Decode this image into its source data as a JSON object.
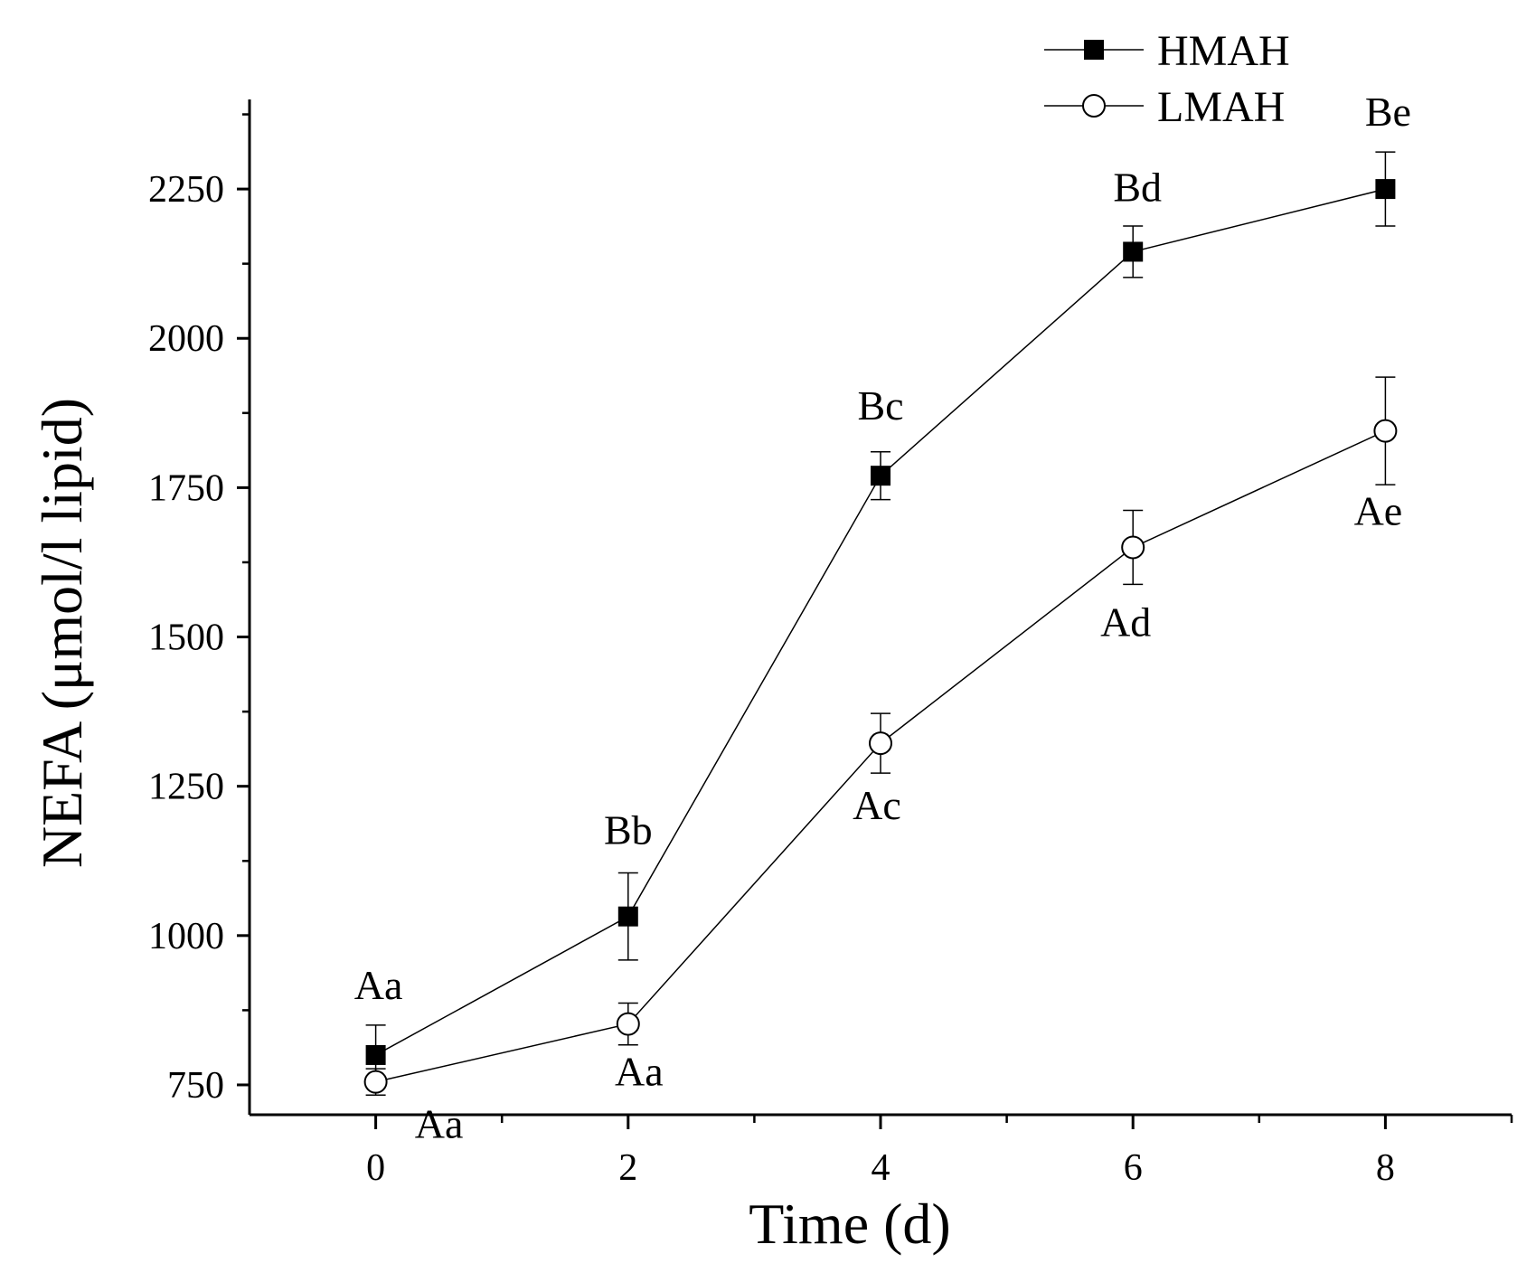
{
  "chart_data": {
    "type": "line",
    "xlabel": "Time (d)",
    "ylabel": "NEFA (μmol/l lipid)",
    "xlim": [
      -1,
      9
    ],
    "ylim": [
      700,
      2400
    ],
    "x_ticks": [
      0,
      2,
      4,
      6,
      8
    ],
    "x_tick_labels": [
      "0",
      "2",
      "4",
      "6",
      "8"
    ],
    "y_ticks": [
      750,
      1000,
      1250,
      1500,
      1750,
      2000,
      2250
    ],
    "y_tick_labels": [
      "750",
      "1000",
      "1250",
      "1500",
      "1750",
      "2000",
      "2250"
    ],
    "legend_position": "top-right",
    "grid": false,
    "series": [
      {
        "name": "HMAH",
        "marker": "filled-square",
        "x": [
          0,
          2,
          4,
          6,
          8
        ],
        "y": [
          800,
          1032,
          1770,
          2145,
          2250
        ],
        "error": [
          50,
          73,
          40,
          43,
          62
        ],
        "labels": [
          "Aa",
          "Bb",
          "Bc",
          "Bd",
          "Be"
        ]
      },
      {
        "name": "LMAH",
        "marker": "open-circle",
        "x": [
          0,
          2,
          4,
          6,
          8
        ],
        "y": [
          755,
          852,
          1322,
          1650,
          1845
        ],
        "error": [
          22,
          35,
          50,
          62,
          90
        ],
        "labels": [
          "Aa",
          "Aa",
          "Ac",
          "Ad",
          "Ae"
        ]
      }
    ]
  },
  "colors": {
    "ink": "#000000",
    "background": "#ffffff"
  }
}
